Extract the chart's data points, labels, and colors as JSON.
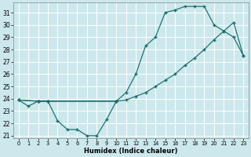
{
  "xlabel": "Humidex (Indice chaleur)",
  "bg_color": "#cce8ec",
  "grid_color": "#ffffff",
  "line_color": "#1a6b6b",
  "xlim": [
    -0.5,
    23.5
  ],
  "ylim": [
    20.8,
    31.8
  ],
  "xticks": [
    0,
    1,
    2,
    3,
    4,
    5,
    6,
    7,
    8,
    9,
    10,
    11,
    12,
    13,
    14,
    15,
    16,
    17,
    18,
    19,
    20,
    21,
    22,
    23
  ],
  "yticks": [
    21,
    22,
    23,
    24,
    25,
    26,
    27,
    28,
    29,
    30,
    31
  ],
  "curve_bottom_x": [
    0,
    1,
    2,
    3,
    4,
    5,
    6,
    7,
    8,
    9,
    10
  ],
  "curve_bottom_y": [
    23.9,
    23.4,
    23.8,
    23.8,
    22.2,
    21.5,
    21.5,
    21.0,
    21.0,
    22.3,
    23.8
  ],
  "curve_upper_x": [
    0,
    2,
    3,
    10,
    11,
    12,
    13,
    14,
    15,
    16,
    17,
    18,
    19,
    20,
    21,
    22,
    23
  ],
  "curve_upper_y": [
    23.9,
    23.8,
    23.8,
    23.8,
    24.5,
    26.0,
    28.3,
    29.0,
    31.0,
    31.2,
    31.5,
    31.5,
    31.5,
    30.0,
    29.5,
    29.0,
    27.5
  ],
  "curve_diag_x": [
    0,
    2,
    3,
    10,
    11,
    12,
    13,
    14,
    15,
    16,
    17,
    18,
    19,
    20,
    21,
    22,
    23
  ],
  "curve_diag_y": [
    23.9,
    23.8,
    23.8,
    23.8,
    23.9,
    24.2,
    24.5,
    25.0,
    25.5,
    26.0,
    26.7,
    27.3,
    28.0,
    28.8,
    29.5,
    30.2,
    27.5
  ]
}
